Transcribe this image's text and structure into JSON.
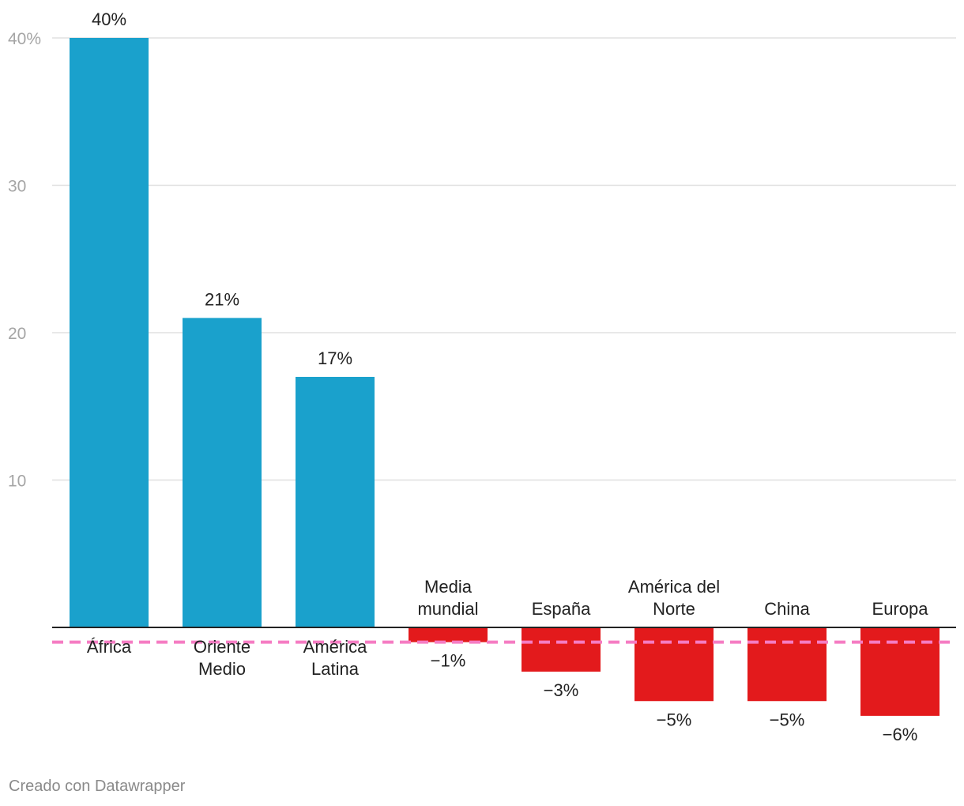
{
  "chart_data": {
    "type": "bar",
    "categories": [
      "África",
      "Oriente Medio",
      "América Latina",
      "Media mundial",
      "España",
      "América del Norte",
      "China",
      "Europa"
    ],
    "category_lines": [
      [
        "África"
      ],
      [
        "Oriente",
        "Medio"
      ],
      [
        "América",
        "Latina"
      ],
      [
        "Media",
        "mundial"
      ],
      [
        "España"
      ],
      [
        "América del",
        "Norte"
      ],
      [
        "China"
      ],
      [
        "Europa"
      ]
    ],
    "values": [
      40,
      21,
      17,
      -1,
      -3,
      -5,
      -5,
      -6
    ],
    "value_labels": [
      "40%",
      "21%",
      "17%",
      "−1%",
      "−3%",
      "−5%",
      "−5%",
      "−6%"
    ],
    "yticks": [
      10,
      20,
      30,
      40
    ],
    "ytick_labels": [
      "10",
      "20",
      "30",
      "40%"
    ],
    "ylim": [
      -7,
      40
    ],
    "reference_line": {
      "value": -1
    },
    "colors": {
      "positive": "#1aa1cc",
      "negative": "#e31a1c",
      "reference": "#f57cc3",
      "grid": "#e0e0e0"
    },
    "grid": true
  },
  "footer": {
    "credit": "Creado con Datawrapper"
  }
}
